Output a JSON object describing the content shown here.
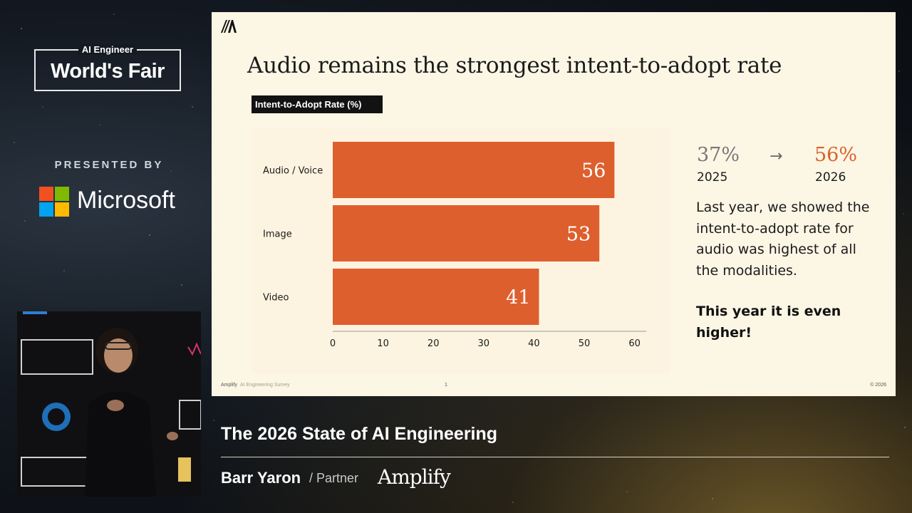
{
  "event": {
    "kicker": "AI Engineer",
    "title": "World's Fair",
    "presented_by": "PRESENTED BY",
    "sponsor_logo": "Microsoft",
    "logo_colors": [
      "#f25022",
      "#7fba00",
      "#00a4ef",
      "#ffb900"
    ]
  },
  "slide": {
    "title": "Audio remains the strongest intent-to-adopt rate",
    "chart_header": "Intent-to-Adopt Rate (%)",
    "stat": {
      "old_value": "37%",
      "old_year": "2025",
      "arrow": "→",
      "new_value": "56%",
      "new_year": "2026"
    },
    "body": "Last year, we showed the intent-to-adopt rate for audio was highest of all the modalities.",
    "body_bold": "This year it is even higher!",
    "footer": {
      "brand": "Amplify",
      "survey": "AI Engineering Survey",
      "page": "1",
      "copyright": "© 2026"
    }
  },
  "chart_data": {
    "type": "bar",
    "orientation": "horizontal",
    "categories": [
      "Audio / Voice",
      "Image",
      "Video"
    ],
    "values": [
      56,
      53,
      41
    ],
    "xticks": [
      0,
      10,
      20,
      30,
      40,
      50,
      60
    ],
    "xlim": [
      0,
      62
    ],
    "bar_color": "#de5f2e",
    "grid": false
  },
  "lower_third": {
    "talk_title": "The 2026 State of AI Engineering",
    "speaker": "Barr Yaron",
    "role": "/ Partner",
    "company": "Amplify"
  }
}
